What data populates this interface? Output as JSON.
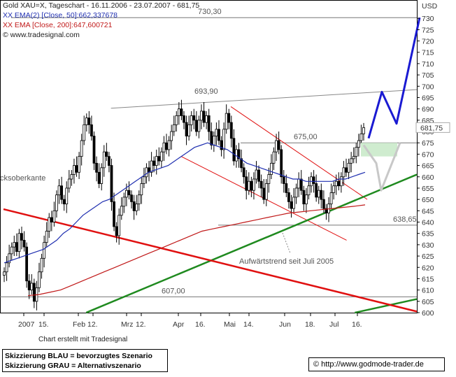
{
  "header": {
    "title": "Gold XAU=X, Tageschart - 16.11.2006 - 23.07.2007 - 681,75",
    "ema50": "XX EMA(2) [Close, 50]:662,337678",
    "ema200": "XX EMA [Close, 200]:647,600721",
    "source": "www.tradesignal.com"
  },
  "colors": {
    "blue_scenario": "#1a1ad2",
    "grey_scenario": "#c8c8c8",
    "ema50": "#1f2fb0",
    "ema200": "#c01818",
    "support": "#1f8a1f",
    "resistance_red": "#e01010"
  },
  "chart_data": {
    "type": "candlestick",
    "unit_label": "USD",
    "y_range": [
      600,
      735
    ],
    "y_ticks": [
      600,
      605,
      610,
      615,
      620,
      625,
      630,
      635,
      640,
      645,
      650,
      655,
      660,
      665,
      670,
      675,
      680,
      685,
      690,
      695,
      700,
      705,
      710,
      715,
      720,
      725,
      730
    ],
    "x_tick_labels": [
      "2007",
      "15.",
      "Feb",
      "12.",
      "Mrz",
      "12.",
      "Apr",
      "16.",
      "Mai",
      "14.",
      "Jun",
      "18.",
      "Jul",
      "16."
    ],
    "last_price_label": "681,75",
    "horizontal_levels": [
      {
        "value": 730.3,
        "label": "730,30"
      },
      {
        "value": 675.0,
        "label": "675,00"
      },
      {
        "value": 638.65,
        "label": "638,65"
      },
      {
        "value": 607.0,
        "label": "607,00"
      }
    ],
    "annotations": {
      "high_label": "693,90",
      "uptrend_label": "Aufwärtstrend seit Juli 2005",
      "edge_label": "cksoberkante"
    },
    "closes": [
      618,
      622,
      626,
      629,
      631,
      627,
      635,
      632,
      629,
      614,
      610,
      613,
      605,
      611,
      618,
      624,
      631,
      636,
      642,
      640,
      645,
      652,
      656,
      650,
      648,
      655,
      659,
      661,
      665,
      662,
      669,
      676,
      683,
      686,
      683,
      678,
      666,
      662,
      657,
      664,
      671,
      669,
      665,
      649,
      638,
      634,
      643,
      647,
      651,
      654,
      652,
      649,
      645,
      648,
      652,
      657,
      660,
      664,
      662,
      667,
      665,
      669,
      667,
      671,
      675,
      672,
      676,
      680,
      683,
      687,
      690,
      687,
      684,
      678,
      683,
      687,
      685,
      680,
      685,
      689,
      684,
      687,
      680,
      674,
      678,
      681,
      676,
      672,
      681,
      688,
      684,
      677,
      667,
      672,
      668,
      664,
      660,
      654,
      658,
      654,
      659,
      663,
      658,
      655,
      650,
      657,
      661,
      666,
      671,
      676,
      672,
      660,
      657,
      653,
      649,
      646,
      651,
      655,
      659,
      654,
      648,
      652,
      656,
      660,
      657,
      651,
      654,
      650,
      646,
      644,
      648,
      653,
      656,
      658,
      656,
      660,
      664,
      662,
      666,
      668,
      669,
      673,
      676,
      679,
      681.75
    ],
    "ema50": [
      622,
      623,
      624,
      625,
      626,
      627,
      628,
      630,
      632,
      635,
      637,
      640,
      643,
      645,
      647,
      649,
      650,
      652,
      654,
      656,
      658,
      660,
      662,
      663,
      664,
      665,
      667,
      669,
      671,
      673,
      674,
      675,
      674,
      673,
      672,
      670,
      668,
      666,
      665,
      664,
      663,
      662,
      661,
      660,
      659,
      659,
      658,
      658,
      658,
      658,
      658,
      659,
      659,
      660,
      661,
      662
    ],
    "ema200": [
      607.5,
      608,
      609,
      610,
      612,
      614,
      616,
      618,
      620,
      622,
      624,
      626,
      628,
      630,
      632,
      634,
      636,
      637,
      638,
      639,
      640,
      641,
      642,
      643,
      644,
      644.5,
      645,
      645.5,
      646,
      646.5,
      647,
      647.6
    ],
    "trendlines": {
      "upper_grey": [
        [
          0,
          690.3
        ],
        [
          1,
          698.5
        ]
      ],
      "red_channel_upper": [
        [
          0,
          691
        ],
        [
          1,
          650
        ]
      ],
      "red_channel_lower": [
        [
          0,
          669
        ],
        [
          1,
          632
        ]
      ],
      "uptrend_green": [
        [
          0,
          600
        ],
        [
          1,
          661
        ]
      ],
      "uptrend_green_lower": [
        [
          0,
          600
        ],
        [
          1,
          606
        ]
      ],
      "long_red_resistance": [
        [
          0,
          645.7
        ],
        [
          1,
          600.5
        ]
      ]
    },
    "scenario_blue": [
      677,
      697.5,
      683.5,
      730.3
    ],
    "scenario_grey": [
      674,
      666,
      654,
      675
    ]
  },
  "footer": {
    "credit": "Chart erstellt mit Tradesignal",
    "scenario_blue": "Skizzierung BLAU = bevorzugtes Szenario",
    "scenario_grey": "Skizzierung GRAU = Alternativszenario",
    "copyright": "©",
    "url": "http://www.godmode-trader.de"
  }
}
